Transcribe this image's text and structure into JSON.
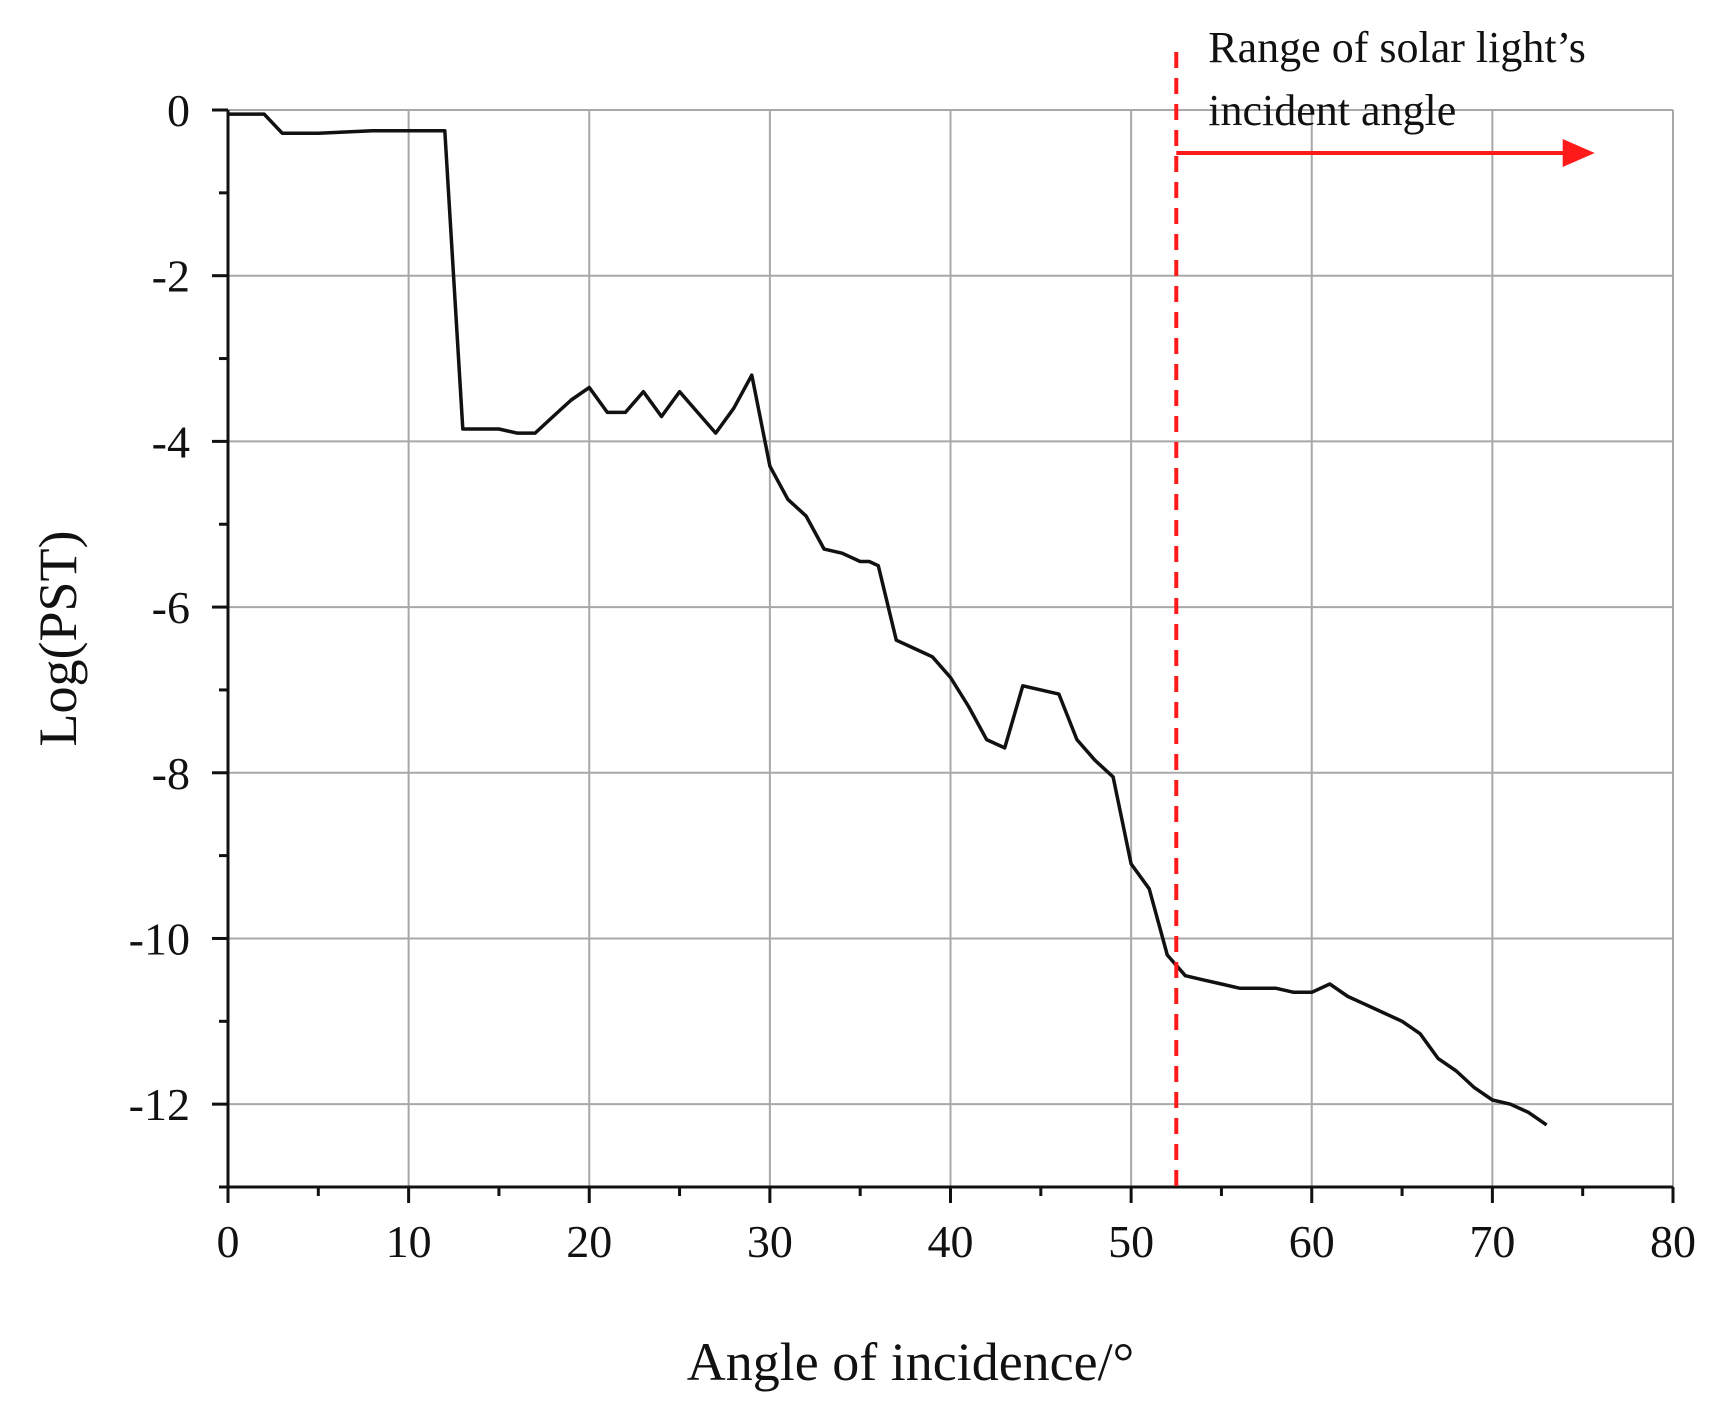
{
  "chart_data": {
    "type": "line",
    "xlabel": "Angle of incidence/°",
    "ylabel": "Log(PST)",
    "xlim": [
      0,
      80
    ],
    "ylim": [
      -13,
      0
    ],
    "x_ticks": [
      0,
      10,
      20,
      30,
      40,
      50,
      60,
      70,
      80
    ],
    "y_ticks": [
      0,
      -2,
      -4,
      -6,
      -8,
      -10,
      -12
    ],
    "grid": true,
    "line_color": "#111111",
    "series": [
      {
        "x": [
          0,
          2,
          3,
          5,
          8,
          10,
          12,
          13,
          15,
          16,
          17,
          18,
          19,
          20,
          21,
          22,
          23,
          24,
          25,
          26,
          27,
          28,
          29,
          30,
          31,
          32,
          33,
          34,
          35,
          35.5,
          36,
          37,
          38,
          39,
          40,
          41,
          42,
          43,
          44,
          45,
          46,
          47,
          48,
          49,
          50,
          51,
          52,
          53,
          54,
          55,
          56,
          57,
          58,
          59,
          60,
          61,
          62,
          63,
          64,
          65,
          66,
          67,
          68,
          69,
          70,
          71,
          72,
          73
        ],
        "y": [
          -0.05,
          -0.05,
          -0.28,
          -0.28,
          -0.25,
          -0.25,
          -0.25,
          -3.85,
          -3.85,
          -3.9,
          -3.9,
          -3.7,
          -3.5,
          -3.35,
          -3.65,
          -3.65,
          -3.4,
          -3.7,
          -3.4,
          -3.65,
          -3.9,
          -3.6,
          -3.2,
          -4.3,
          -4.7,
          -4.9,
          -5.3,
          -5.35,
          -5.45,
          -5.45,
          -5.5,
          -6.4,
          -6.5,
          -6.6,
          -6.85,
          -7.2,
          -7.6,
          -7.7,
          -6.95,
          -7.0,
          -7.05,
          -7.6,
          -7.85,
          -8.05,
          -9.1,
          -9.4,
          -10.2,
          -10.45,
          -10.5,
          -10.55,
          -10.6,
          -10.6,
          -10.6,
          -10.65,
          -10.65,
          -10.55,
          -10.7,
          -10.8,
          -10.9,
          -11.0,
          -11.15,
          -11.45,
          -11.6,
          -11.8,
          -11.95,
          -12.0,
          -12.1,
          -12.25
        ]
      }
    ],
    "annotation": {
      "text_line1": "Range of solar light’s",
      "text_line2": "incident angle",
      "x": 52.5,
      "arrow_x_end": 75,
      "color": "#ff1a1a"
    }
  }
}
